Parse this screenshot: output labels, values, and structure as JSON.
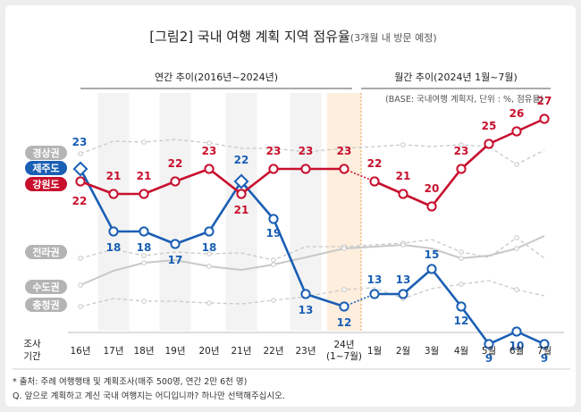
{
  "title": "[그림2] 국내 여행 계획 지역 점유율",
  "title_sub": "(3개월 내 방문 예정)",
  "section_left": "연간 추이(2016년~2024년)",
  "section_right": "월간 추이(2024년 1월~7월)",
  "base_note": "(BASE: 국내여행 계획자, 단위 : %, 점유율)",
  "x_label_top": "조사",
  "x_label_bottom": "기간",
  "footnote_1": "* 출처: 주례 여행행태 및 계획조사(매주 500명, 연간 2만 6천 명)",
  "footnote_2": "Q. 앞으로 계획하고 계신 국내 여행지는 어디입니까? 하나만 선택해주십시오.",
  "colors": {
    "jeju": "#1a5fb4",
    "gangwon": "#c8102e",
    "gray_line": "#c8c8c8",
    "gray_label": "#b4b4b4",
    "highlight": "#fdeedd"
  },
  "chart_data": {
    "type": "line",
    "categories": [
      "16년",
      "17년",
      "18년",
      "19년",
      "20년",
      "21년",
      "22년",
      "23년",
      "24년\n(1~7월)",
      "1월",
      "2월",
      "3월",
      "4월",
      "5월",
      "6월",
      "7월"
    ],
    "series": [
      {
        "name": "제주도",
        "values": [
          23,
          18,
          18,
          17,
          18,
          22,
          19,
          13,
          12,
          13,
          13,
          15,
          12,
          9,
          10,
          9
        ]
      },
      {
        "name": "강원도",
        "values": [
          22,
          21,
          21,
          22,
          23,
          21,
          23,
          23,
          23,
          22,
          21,
          20,
          23,
          25,
          26,
          27
        ]
      },
      {
        "name": "경상권",
        "values": [
          null,
          null,
          null,
          null,
          null,
          null,
          null,
          null,
          null,
          null,
          null,
          null,
          null,
          null,
          null,
          null
        ]
      },
      {
        "name": "전라권",
        "values": [
          null,
          null,
          null,
          null,
          null,
          null,
          null,
          null,
          null,
          null,
          null,
          null,
          null,
          null,
          null,
          null
        ]
      },
      {
        "name": "수도권",
        "values": [
          null,
          null,
          null,
          null,
          null,
          null,
          null,
          null,
          null,
          null,
          null,
          null,
          null,
          null,
          null,
          null
        ]
      },
      {
        "name": "충청권",
        "values": [
          null,
          null,
          null,
          null,
          null,
          null,
          null,
          null,
          null,
          null,
          null,
          null,
          null,
          null,
          null,
          null
        ]
      }
    ],
    "highlight_label": "24년\n(1~7월)"
  }
}
